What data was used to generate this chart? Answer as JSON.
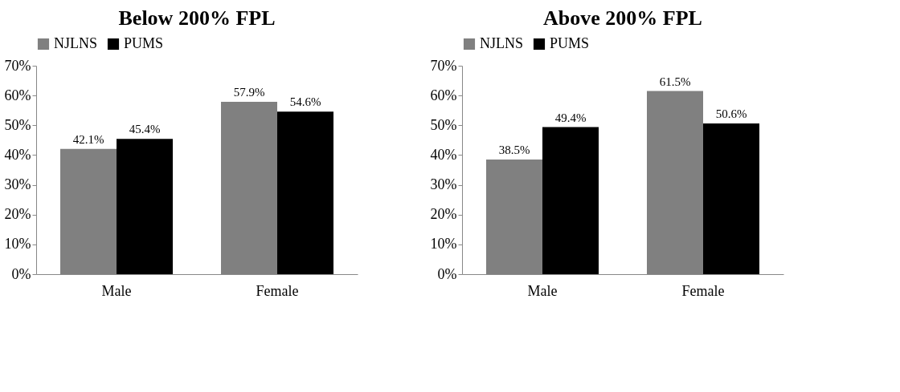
{
  "chart_data": [
    {
      "type": "bar",
      "title": "Below 200% FPL",
      "categories": [
        "Male",
        "Female"
      ],
      "series": [
        {
          "name": "NJLNS",
          "color": "#808080",
          "values": [
            42.1,
            57.9
          ],
          "value_labels": [
            "42.1%",
            "57.9%"
          ]
        },
        {
          "name": "PUMS",
          "color": "#000000",
          "values": [
            45.4,
            54.6
          ],
          "value_labels": [
            "45.4%",
            "54.6%"
          ]
        }
      ],
      "ylim": [
        0,
        70
      ],
      "yticks": [
        {
          "value": 0,
          "label": "0%"
        },
        {
          "value": 10,
          "label": "10%"
        },
        {
          "value": 20,
          "label": "20%"
        },
        {
          "value": 30,
          "label": "30%"
        },
        {
          "value": 40,
          "label": "40%"
        },
        {
          "value": 50,
          "label": "50%"
        },
        {
          "value": 60,
          "label": "60%"
        },
        {
          "value": 70,
          "label": "70%"
        }
      ],
      "legend": "top",
      "grid": false
    },
    {
      "type": "bar",
      "title": "Above 200% FPL",
      "categories": [
        "Male",
        "Female"
      ],
      "series": [
        {
          "name": "NJLNS",
          "color": "#808080",
          "values": [
            38.5,
            61.5
          ],
          "value_labels": [
            "38.5%",
            "61.5%"
          ]
        },
        {
          "name": "PUMS",
          "color": "#000000",
          "values": [
            49.4,
            50.6
          ],
          "value_labels": [
            "49.4%",
            "50.6%"
          ]
        }
      ],
      "ylim": [
        0,
        70
      ],
      "yticks": [
        {
          "value": 0,
          "label": "0%"
        },
        {
          "value": 10,
          "label": "10%"
        },
        {
          "value": 20,
          "label": "20%"
        },
        {
          "value": 30,
          "label": "30%"
        },
        {
          "value": 40,
          "label": "40%"
        },
        {
          "value": 50,
          "label": "50%"
        },
        {
          "value": 60,
          "label": "60%"
        },
        {
          "value": 70,
          "label": "70%"
        }
      ],
      "legend": "top",
      "grid": false
    }
  ]
}
